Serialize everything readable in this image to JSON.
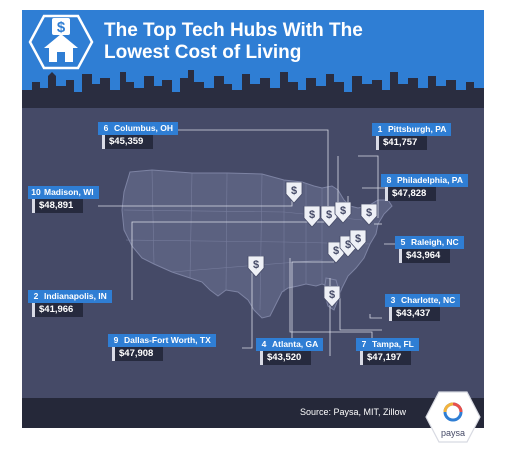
{
  "title": {
    "line1": "The Top Tech Hubs With The",
    "line2": "Lowest Cost of Living"
  },
  "cities": [
    {
      "rank": "1",
      "name": "Pittsburgh, PA",
      "salary": "$41,757"
    },
    {
      "rank": "2",
      "name": "Indianapolis, IN",
      "salary": "$41,966"
    },
    {
      "rank": "3",
      "name": "Charlotte, NC",
      "salary": "$43,437"
    },
    {
      "rank": "4",
      "name": "Atlanta, GA",
      "salary": "$43,520"
    },
    {
      "rank": "5",
      "name": "Raleigh, NC",
      "salary": "$43,964"
    },
    {
      "rank": "6",
      "name": "Columbus, OH",
      "salary": "$45,359"
    },
    {
      "rank": "7",
      "name": "Tampa, FL",
      "salary": "$47,197"
    },
    {
      "rank": "8",
      "name": "Philadelphia, PA",
      "salary": "$47,828"
    },
    {
      "rank": "9",
      "name": "Dallas-Fort Worth, TX",
      "salary": "$47,908"
    },
    {
      "rank": "10",
      "name": "Madison, WI",
      "salary": "$48,891"
    }
  ],
  "footer": {
    "source": "Source: Paysa, MIT, Zillow",
    "brand": "paysa"
  },
  "colors": {
    "header_blue": "#2f7ed4",
    "card_bg": "#454a67",
    "map_fill": "#5b6180",
    "footer_bg": "#252839",
    "pin_white": "#eef0f6"
  },
  "icons": {
    "header": "house-dollar-icon",
    "pin": "dollar-pin-icon",
    "brand": "paysa-logo-icon"
  }
}
